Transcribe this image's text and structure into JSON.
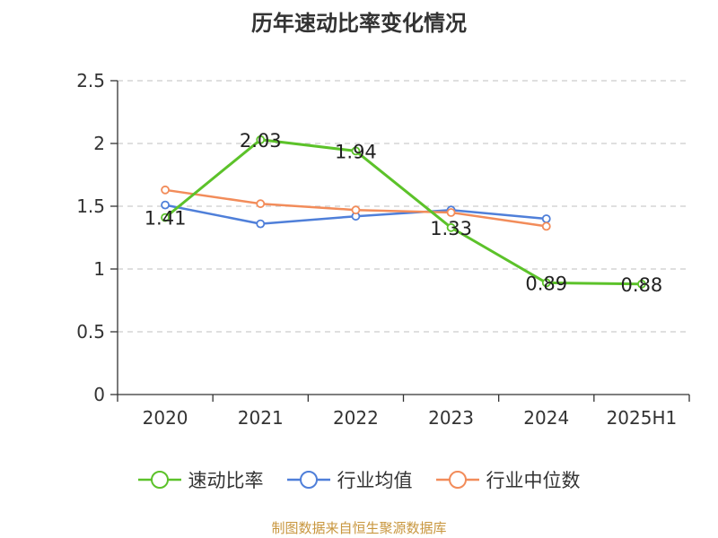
{
  "chart_data": {
    "type": "line",
    "title": "历年速动比率变化情况",
    "categories": [
      "2020",
      "2021",
      "2022",
      "2023",
      "2024",
      "2025H1"
    ],
    "ylim": [
      0,
      2.5
    ],
    "yticks": [
      "0",
      "0.5",
      "1",
      "1.5",
      "2",
      "2.5"
    ],
    "grid": true,
    "legend_position": "bottom",
    "series": [
      {
        "name": "速动比率",
        "color": "#5cc22a",
        "values": [
          1.41,
          2.03,
          1.94,
          1.33,
          0.89,
          0.88
        ],
        "labels": [
          "1.41",
          "2.03",
          "1.94",
          "1.33",
          "0.89",
          "0.88"
        ]
      },
      {
        "name": "行业均值",
        "color": "#4f7fd9",
        "values": [
          1.51,
          1.36,
          1.42,
          1.47,
          1.4,
          null
        ]
      },
      {
        "name": "行业中位数",
        "color": "#f28c5a",
        "values": [
          1.63,
          1.52,
          1.47,
          1.45,
          1.34,
          null
        ]
      }
    ]
  },
  "source_note": "制图数据来自恒生聚源数据库"
}
